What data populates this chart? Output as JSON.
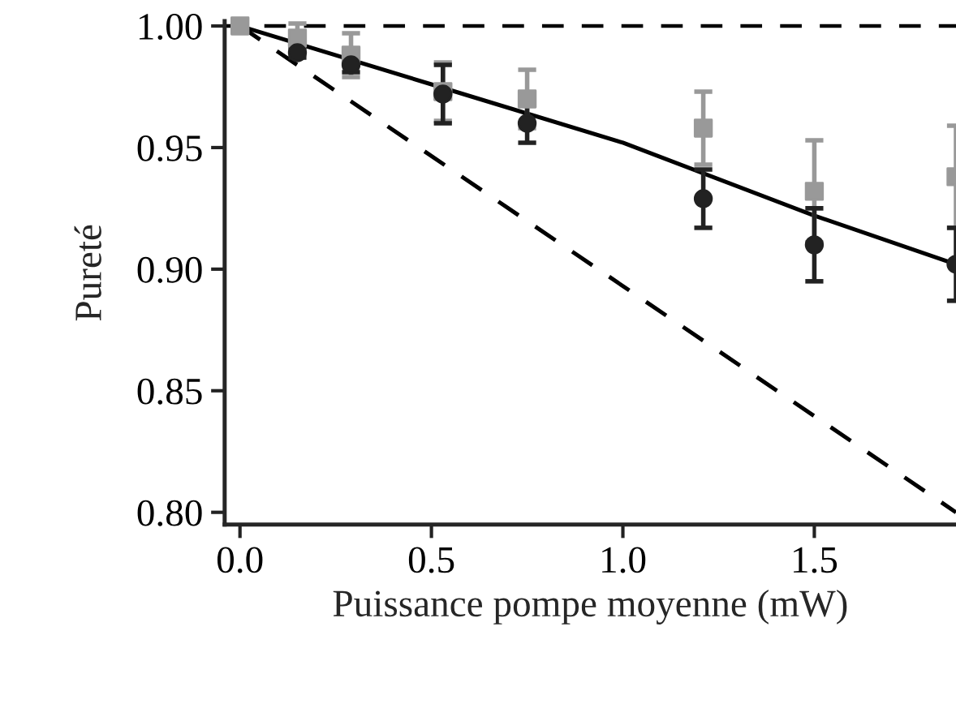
{
  "chart_data": {
    "type": "scatter",
    "xlabel": "Puissance pompe moyenne (mW)",
    "ylabel": "Pureté",
    "xlim": [
      -0.04,
      1.87
    ],
    "ylim": [
      0.795,
      1.002
    ],
    "xticks": [
      {
        "value": 0,
        "label": "0.0"
      },
      0.5,
      {
        "value": 1,
        "label": "1.0"
      },
      1.5
    ],
    "yticks": [
      {
        "value": 0.8,
        "label": "0.80"
      },
      0.85,
      {
        "value": 0.9,
        "label": "0.90"
      },
      0.95,
      {
        "value": 1,
        "label": "1.00"
      }
    ],
    "grid": false,
    "legend": false,
    "ref_lines": [
      {
        "axis": "y",
        "value": 1.0,
        "color": "#000000",
        "line_style": "dashed"
      }
    ],
    "series": [
      {
        "type": "line",
        "color": "#000000",
        "line_style": "dashed",
        "marker": "none",
        "x": [
          0,
          1.87
        ],
        "values": [
          1.0,
          0.8
        ]
      },
      {
        "type": "line",
        "color": "#000000",
        "line_style": "solid",
        "marker": "none",
        "x": [
          0,
          0.5,
          1.0,
          1.5,
          1.87
        ],
        "values": [
          1.0,
          0.976,
          0.952,
          0.922,
          0.902
        ]
      },
      {
        "color": "#999999",
        "marker": "square",
        "x": [
          0,
          0.15,
          0.29,
          0.53,
          0.75,
          1.21,
          1.5,
          1.87
        ],
        "values": [
          1.0,
          0.995,
          0.988,
          0.973,
          0.97,
          0.958,
          0.932,
          0.938
        ],
        "errors": [
          null,
          0.006,
          0.009,
          0.012,
          0.012,
          0.015,
          0.021,
          0.021
        ]
      },
      {
        "color": "#222222",
        "marker": "circle",
        "x": [
          0.15,
          0.29,
          0.53,
          0.75,
          1.21,
          1.5,
          1.87
        ],
        "values": [
          0.989,
          0.984,
          0.972,
          0.96,
          0.929,
          0.91,
          0.902
        ],
        "errors": [
          0.002,
          0.003,
          0.012,
          0.008,
          0.012,
          0.015,
          0.015
        ]
      }
    ]
  }
}
